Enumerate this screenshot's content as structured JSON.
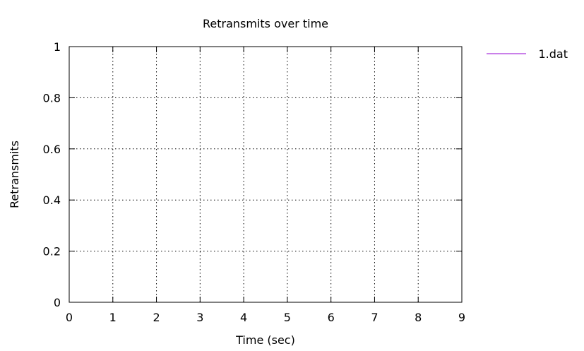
{
  "chart_data": {
    "type": "line",
    "title": "Retransmits over time",
    "xlabel": "Time (sec)",
    "ylabel": "Retransmits",
    "xlim": [
      0,
      9
    ],
    "ylim": [
      0,
      1
    ],
    "x_ticks": [
      0,
      1,
      2,
      3,
      4,
      5,
      6,
      7,
      8,
      9
    ],
    "y_ticks": [
      0,
      0.2,
      0.4,
      0.6,
      0.8,
      1
    ],
    "grid": true,
    "legend_position": "outside-right-top",
    "series": [
      {
        "name": "1.dat",
        "color": "#9400d3",
        "x": [],
        "y": []
      }
    ]
  }
}
